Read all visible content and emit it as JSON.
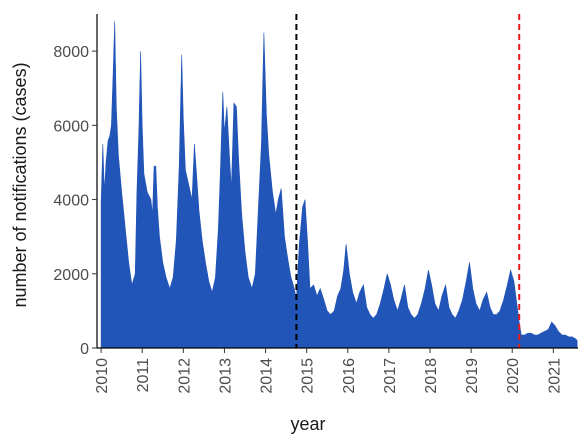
{
  "chart_data": {
    "type": "area",
    "title": "",
    "xlabel": "year",
    "ylabel": "number of notifications (cases)",
    "xlim": [
      2009.9,
      2021.6
    ],
    "ylim": [
      0,
      9000
    ],
    "x_ticks": [
      2010,
      2011,
      2012,
      2013,
      2014,
      2015,
      2016,
      2017,
      2018,
      2019,
      2020,
      2021
    ],
    "x_tick_labels": [
      "2010",
      "2011",
      "2012",
      "2013",
      "2014",
      "2015",
      "2016",
      "2017",
      "2018",
      "2019",
      "2020",
      "2021"
    ],
    "y_ticks": [
      0,
      2000,
      4000,
      6000,
      8000
    ],
    "y_tick_labels": [
      "0",
      "2000",
      "4000",
      "6000",
      "8000"
    ],
    "grid": false,
    "legend": "none",
    "fill_color": "#2255b8",
    "reference_lines": [
      {
        "x": 2014.75,
        "color": "#000000",
        "style": "dashed"
      },
      {
        "x": 2020.17,
        "color": "#e41a1c",
        "style": "dashed"
      }
    ],
    "series": [
      {
        "values": [
          [
            2010.0,
            3900
          ],
          [
            2010.04,
            5500
          ],
          [
            2010.08,
            4200
          ],
          [
            2010.12,
            5000
          ],
          [
            2010.17,
            5600
          ],
          [
            2010.21,
            5700
          ],
          [
            2010.25,
            6000
          ],
          [
            2010.29,
            7300
          ],
          [
            2010.33,
            8800
          ],
          [
            2010.37,
            6500
          ],
          [
            2010.42,
            5200
          ],
          [
            2010.5,
            4200
          ],
          [
            2010.58,
            3300
          ],
          [
            2010.67,
            2300
          ],
          [
            2010.75,
            1700
          ],
          [
            2010.83,
            2000
          ],
          [
            2010.87,
            4200
          ],
          [
            2010.92,
            5900
          ],
          [
            2010.96,
            8000
          ],
          [
            2011.0,
            6000
          ],
          [
            2011.04,
            4700
          ],
          [
            2011.12,
            4200
          ],
          [
            2011.21,
            4000
          ],
          [
            2011.25,
            3600
          ],
          [
            2011.29,
            4900
          ],
          [
            2011.33,
            4900
          ],
          [
            2011.37,
            3800
          ],
          [
            2011.42,
            3000
          ],
          [
            2011.5,
            2300
          ],
          [
            2011.58,
            1900
          ],
          [
            2011.67,
            1600
          ],
          [
            2011.75,
            1900
          ],
          [
            2011.83,
            2900
          ],
          [
            2011.9,
            4900
          ],
          [
            2011.96,
            7900
          ],
          [
            2012.0,
            6200
          ],
          [
            2012.05,
            4800
          ],
          [
            2012.13,
            4400
          ],
          [
            2012.21,
            4000
          ],
          [
            2012.27,
            5500
          ],
          [
            2012.32,
            4700
          ],
          [
            2012.38,
            3700
          ],
          [
            2012.46,
            2900
          ],
          [
            2012.54,
            2300
          ],
          [
            2012.62,
            1800
          ],
          [
            2012.7,
            1500
          ],
          [
            2012.78,
            1900
          ],
          [
            2012.85,
            3200
          ],
          [
            2012.9,
            4700
          ],
          [
            2012.96,
            6900
          ],
          [
            2013.0,
            5800
          ],
          [
            2013.06,
            6500
          ],
          [
            2013.12,
            5200
          ],
          [
            2013.17,
            4300
          ],
          [
            2013.23,
            6600
          ],
          [
            2013.29,
            6500
          ],
          [
            2013.35,
            5000
          ],
          [
            2013.42,
            3600
          ],
          [
            2013.5,
            2600
          ],
          [
            2013.58,
            1900
          ],
          [
            2013.67,
            1600
          ],
          [
            2013.75,
            2000
          ],
          [
            2013.83,
            3900
          ],
          [
            2013.9,
            5500
          ],
          [
            2013.96,
            8500
          ],
          [
            2014.02,
            6300
          ],
          [
            2014.08,
            5200
          ],
          [
            2014.17,
            4200
          ],
          [
            2014.25,
            3600
          ],
          [
            2014.31,
            4000
          ],
          [
            2014.38,
            4300
          ],
          [
            2014.46,
            3000
          ],
          [
            2014.54,
            2400
          ],
          [
            2014.62,
            1900
          ],
          [
            2014.7,
            1600
          ],
          [
            2014.75,
            1300
          ],
          [
            2014.82,
            2800
          ],
          [
            2014.9,
            3800
          ],
          [
            2014.96,
            4000
          ],
          [
            2015.02,
            2900
          ],
          [
            2015.08,
            1600
          ],
          [
            2015.17,
            1700
          ],
          [
            2015.25,
            1400
          ],
          [
            2015.33,
            1600
          ],
          [
            2015.42,
            1300
          ],
          [
            2015.5,
            1000
          ],
          [
            2015.58,
            900
          ],
          [
            2015.67,
            1000
          ],
          [
            2015.75,
            1400
          ],
          [
            2015.83,
            1600
          ],
          [
            2015.9,
            2100
          ],
          [
            2015.96,
            2800
          ],
          [
            2016.04,
            2000
          ],
          [
            2016.12,
            1500
          ],
          [
            2016.21,
            1200
          ],
          [
            2016.29,
            1500
          ],
          [
            2016.38,
            1700
          ],
          [
            2016.46,
            1100
          ],
          [
            2016.54,
            900
          ],
          [
            2016.62,
            800
          ],
          [
            2016.7,
            900
          ],
          [
            2016.79,
            1200
          ],
          [
            2016.88,
            1600
          ],
          [
            2016.96,
            2000
          ],
          [
            2017.04,
            1700
          ],
          [
            2017.12,
            1300
          ],
          [
            2017.21,
            1000
          ],
          [
            2017.29,
            1300
          ],
          [
            2017.38,
            1700
          ],
          [
            2017.46,
            1100
          ],
          [
            2017.54,
            900
          ],
          [
            2017.62,
            800
          ],
          [
            2017.7,
            900
          ],
          [
            2017.79,
            1200
          ],
          [
            2017.88,
            1600
          ],
          [
            2017.96,
            2100
          ],
          [
            2018.04,
            1700
          ],
          [
            2018.12,
            1200
          ],
          [
            2018.21,
            1000
          ],
          [
            2018.29,
            1400
          ],
          [
            2018.38,
            1700
          ],
          [
            2018.46,
            1100
          ],
          [
            2018.54,
            900
          ],
          [
            2018.62,
            800
          ],
          [
            2018.7,
            1000
          ],
          [
            2018.79,
            1300
          ],
          [
            2018.88,
            1800
          ],
          [
            2018.96,
            2300
          ],
          [
            2019.04,
            1600
          ],
          [
            2019.12,
            1200
          ],
          [
            2019.21,
            1000
          ],
          [
            2019.29,
            1300
          ],
          [
            2019.38,
            1500
          ],
          [
            2019.46,
            1100
          ],
          [
            2019.54,
            900
          ],
          [
            2019.62,
            900
          ],
          [
            2019.7,
            1000
          ],
          [
            2019.79,
            1300
          ],
          [
            2019.88,
            1700
          ],
          [
            2019.96,
            2100
          ],
          [
            2020.04,
            1800
          ],
          [
            2020.1,
            1300
          ],
          [
            2020.17,
            700
          ],
          [
            2020.22,
            350
          ],
          [
            2020.3,
            350
          ],
          [
            2020.38,
            400
          ],
          [
            2020.46,
            400
          ],
          [
            2020.54,
            350
          ],
          [
            2020.62,
            350
          ],
          [
            2020.7,
            400
          ],
          [
            2020.79,
            450
          ],
          [
            2020.88,
            500
          ],
          [
            2020.96,
            700
          ],
          [
            2021.04,
            600
          ],
          [
            2021.12,
            450
          ],
          [
            2021.21,
            350
          ],
          [
            2021.29,
            350
          ],
          [
            2021.38,
            300
          ],
          [
            2021.46,
            300
          ],
          [
            2021.54,
            250
          ],
          [
            2021.58,
            200
          ]
        ]
      }
    ]
  }
}
